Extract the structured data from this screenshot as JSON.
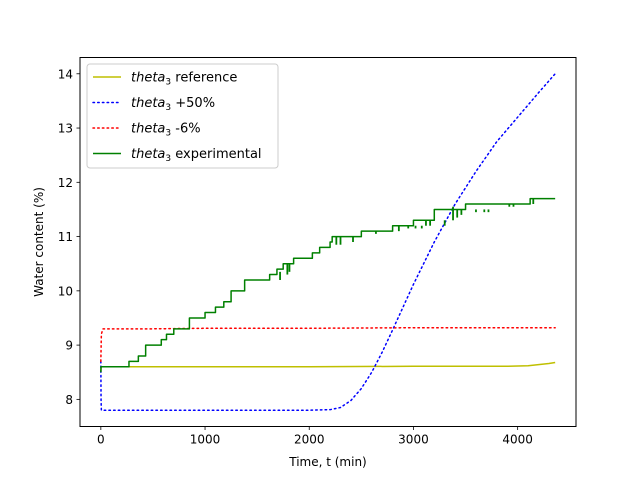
{
  "chart_data": {
    "type": "line",
    "title": "",
    "xlabel": "Time, t (min)",
    "ylabel": "Water content (%)",
    "xlim": [
      -200,
      4560
    ],
    "ylim": [
      7.5,
      14.3
    ],
    "xticks": [
      0,
      1000,
      2000,
      3000,
      4000
    ],
    "yticks": [
      8,
      9,
      10,
      11,
      12,
      13,
      14
    ],
    "grid": false,
    "legend_position": "top-left",
    "series": [
      {
        "name": "theta_3 reference",
        "legend_italic": "theta",
        "legend_sub": "3",
        "legend_rest": " reference",
        "color": "#bfbf00",
        "style": "solid",
        "x": [
          0,
          2,
          5,
          500,
          1000,
          2000,
          3000,
          3600,
          3900,
          4100,
          4200,
          4300,
          4360
        ],
        "y": [
          8.5,
          8.6,
          8.6,
          8.6,
          8.6,
          8.6,
          8.61,
          8.61,
          8.61,
          8.62,
          8.64,
          8.66,
          8.68
        ]
      },
      {
        "name": "theta_3 +50%",
        "legend_italic": "theta",
        "legend_sub": "3",
        "legend_rest": " +50%",
        "color": "#0000ff",
        "style": "dotted",
        "x": [
          0,
          2,
          5,
          50,
          1000,
          2000,
          2200,
          2300,
          2400,
          2500,
          2600,
          2700,
          2800,
          2900,
          3000,
          3200,
          3400,
          3600,
          3800,
          4000,
          4200,
          4360
        ],
        "y": [
          8.7,
          8.0,
          7.8,
          7.8,
          7.8,
          7.8,
          7.81,
          7.85,
          7.98,
          8.2,
          8.5,
          8.87,
          9.28,
          9.7,
          10.12,
          10.9,
          11.6,
          12.2,
          12.75,
          13.2,
          13.65,
          14.0
        ],
        "ends_with_arrow": false
      },
      {
        "name": "theta_3 -6%",
        "legend_italic": "theta",
        "legend_sub": "3",
        "legend_rest": " -6%",
        "color": "#ff0000",
        "style": "dotted",
        "x": [
          0,
          5,
          20,
          500,
          1000,
          2000,
          3000,
          4000,
          4360
        ],
        "y": [
          8.7,
          9.2,
          9.3,
          9.3,
          9.31,
          9.31,
          9.32,
          9.32,
          9.32
        ]
      },
      {
        "name": "theta_3 experimental",
        "legend_italic": "theta",
        "legend_sub": "3",
        "legend_rest": " experimental",
        "color": "#008000",
        "style": "solid",
        "x": [
          0,
          2,
          5,
          270,
          270,
          360,
          360,
          430,
          430,
          580,
          580,
          630,
          630,
          700,
          700,
          750,
          750,
          850,
          850,
          1000,
          1000,
          1100,
          1100,
          1180,
          1180,
          1250,
          1250,
          1380,
          1380,
          1620,
          1620,
          1690,
          1690,
          1750,
          1750,
          1800,
          1800,
          1850,
          1850,
          2000,
          2000,
          2030,
          2030,
          2100,
          2100,
          2200,
          2200,
          2220,
          2220,
          2350,
          2350,
          2500,
          2500,
          2650,
          2650,
          2800,
          2800,
          2920,
          2920,
          3000,
          3000,
          3100,
          3100,
          3200,
          3200,
          3400,
          3400,
          3500,
          3500,
          3900,
          3900,
          4000,
          4000,
          4120,
          4120,
          4220,
          4220,
          4360
        ],
        "y": [
          8.5,
          8.6,
          8.6,
          8.6,
          8.7,
          8.7,
          8.8,
          8.8,
          9.0,
          9.0,
          9.1,
          9.1,
          9.2,
          9.2,
          9.3,
          9.3,
          9.3,
          9.3,
          9.5,
          9.5,
          9.6,
          9.6,
          9.7,
          9.7,
          9.8,
          9.8,
          10.0,
          10.0,
          10.2,
          10.2,
          10.3,
          10.3,
          10.4,
          10.4,
          10.5,
          10.5,
          10.5,
          10.5,
          10.6,
          10.6,
          10.6,
          10.6,
          10.7,
          10.7,
          10.8,
          10.8,
          10.9,
          10.9,
          11.0,
          11.0,
          11.0,
          11.0,
          11.1,
          11.1,
          11.1,
          11.1,
          11.2,
          11.2,
          11.2,
          11.2,
          11.3,
          11.3,
          11.3,
          11.3,
          11.5,
          11.5,
          11.5,
          11.5,
          11.6,
          11.6,
          11.6,
          11.6,
          11.6,
          11.6,
          11.7,
          11.7,
          11.7,
          11.7
        ],
        "spikes": [
          {
            "x": 1720,
            "y_low": 10.2,
            "y_high": 10.35
          },
          {
            "x": 1790,
            "y_low": 10.3,
            "y_high": 10.5
          },
          {
            "x": 1810,
            "y_low": 10.35,
            "y_high": 10.5
          },
          {
            "x": 2260,
            "y_low": 10.85,
            "y_high": 11.0
          },
          {
            "x": 2300,
            "y_low": 10.85,
            "y_high": 11.0
          },
          {
            "x": 2420,
            "y_low": 10.9,
            "y_high": 11.0
          },
          {
            "x": 2640,
            "y_low": 11.05,
            "y_high": 11.1
          },
          {
            "x": 2860,
            "y_low": 11.1,
            "y_high": 11.2
          },
          {
            "x": 2950,
            "y_low": 11.15,
            "y_high": 11.2
          },
          {
            "x": 3020,
            "y_low": 11.15,
            "y_high": 11.2
          },
          {
            "x": 3080,
            "y_low": 11.15,
            "y_high": 11.2
          },
          {
            "x": 3120,
            "y_low": 11.2,
            "y_high": 11.3
          },
          {
            "x": 3160,
            "y_low": 11.2,
            "y_high": 11.3
          },
          {
            "x": 3300,
            "y_low": 11.2,
            "y_high": 11.3
          },
          {
            "x": 3380,
            "y_low": 11.3,
            "y_high": 11.55
          },
          {
            "x": 3420,
            "y_low": 11.35,
            "y_high": 11.5
          },
          {
            "x": 3460,
            "y_low": 11.4,
            "y_high": 11.5
          },
          {
            "x": 3600,
            "y_low": 11.45,
            "y_high": 11.5
          },
          {
            "x": 3680,
            "y_low": 11.45,
            "y_high": 11.5
          },
          {
            "x": 3720,
            "y_low": 11.45,
            "y_high": 11.5
          },
          {
            "x": 3920,
            "y_low": 11.55,
            "y_high": 11.6
          },
          {
            "x": 3960,
            "y_low": 11.55,
            "y_high": 11.6
          },
          {
            "x": 4150,
            "y_low": 11.6,
            "y_high": 11.7
          }
        ]
      }
    ]
  }
}
